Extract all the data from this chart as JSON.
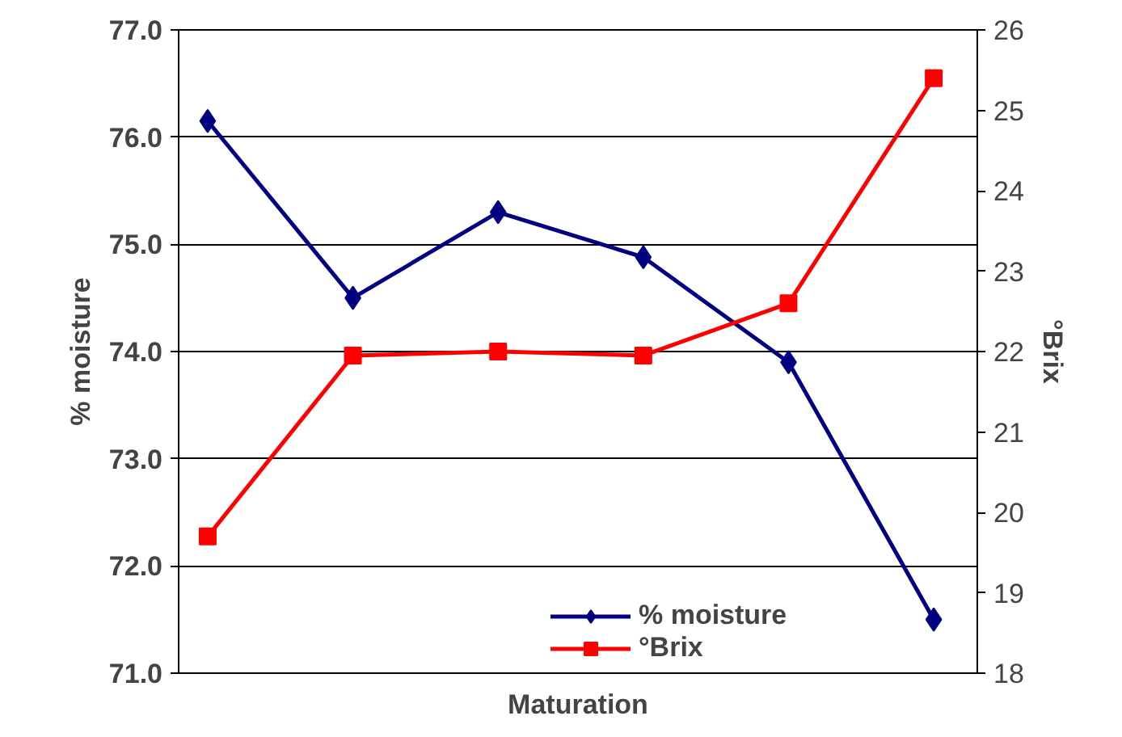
{
  "chart_data": {
    "type": "line",
    "xlabel": "Maturation",
    "ylabel": "% moisture",
    "y2label": "°Brix",
    "categories": [
      null,
      null,
      null,
      null,
      null,
      null
    ],
    "series": [
      {
        "name": "% moisture",
        "color": "#000080",
        "marker": "diamond",
        "values": [
          76.15,
          74.5,
          75.3,
          74.88,
          73.9,
          71.5
        ]
      },
      {
        "name": "°Brix",
        "color": "#ff0000",
        "marker": "square",
        "axis": "y2",
        "values": [
          19.7,
          21.95,
          22.0,
          21.95,
          22.6,
          25.4
        ]
      }
    ],
    "ylim": [
      71,
      77
    ],
    "yticks": [
      {
        "value": 71,
        "label": "71.0"
      },
      {
        "value": 72,
        "label": "72.0"
      },
      {
        "value": 73,
        "label": "73.0"
      },
      {
        "value": 74,
        "label": "74.0"
      },
      {
        "value": 75,
        "label": "75.0"
      },
      {
        "value": 76,
        "label": "76.0"
      },
      {
        "value": 77,
        "label": "77.0"
      }
    ],
    "y2lim": [
      18,
      26
    ],
    "y2ticks": [
      18,
      19,
      20,
      21,
      22,
      23,
      24,
      25,
      26
    ],
    "grid": "y",
    "legend": "bottom",
    "line_style": "solid"
  }
}
